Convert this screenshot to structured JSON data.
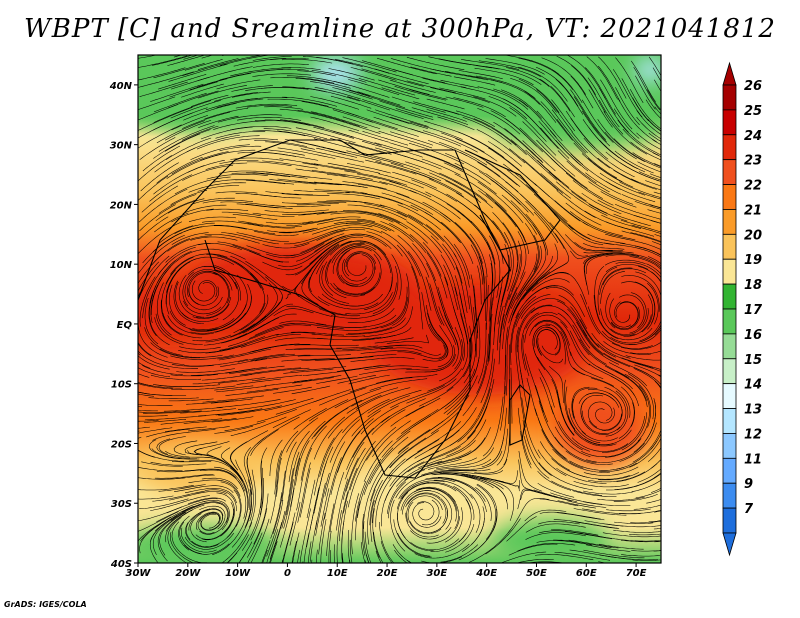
{
  "title": "WBPT [C] and Sreamline at 300hPa, VT: 2021041812",
  "footer": "GrADS: IGES/COLA",
  "map": {
    "lon_range": [
      -30,
      75
    ],
    "lat_range": [
      -40,
      45
    ],
    "lon_ticks": [
      {
        "value": -30,
        "label": "30W"
      },
      {
        "value": -20,
        "label": "20W"
      },
      {
        "value": -10,
        "label": "10W"
      },
      {
        "value": 0,
        "label": "0"
      },
      {
        "value": 10,
        "label": "10E"
      },
      {
        "value": 20,
        "label": "20E"
      },
      {
        "value": 30,
        "label": "30E"
      },
      {
        "value": 40,
        "label": "40E"
      },
      {
        "value": 50,
        "label": "50E"
      },
      {
        "value": 60,
        "label": "60E"
      },
      {
        "value": 70,
        "label": "70E"
      }
    ],
    "lat_ticks": [
      {
        "value": 40,
        "label": "40N"
      },
      {
        "value": 30,
        "label": "30N"
      },
      {
        "value": 20,
        "label": "20N"
      },
      {
        "value": 10,
        "label": "10N"
      },
      {
        "value": 0,
        "label": "EQ"
      },
      {
        "value": -10,
        "label": "10S"
      },
      {
        "value": -20,
        "label": "20S"
      },
      {
        "value": -30,
        "label": "30S"
      },
      {
        "value": -40,
        "label": "40S"
      }
    ]
  },
  "colorbar": {
    "levels": [
      {
        "label": "26",
        "color": "#a50000"
      },
      {
        "label": "25",
        "color": "#c80000"
      },
      {
        "label": "24",
        "color": "#e1280a"
      },
      {
        "label": "23",
        "color": "#f0501e"
      },
      {
        "label": "22",
        "color": "#fa7814"
      },
      {
        "label": "21",
        "color": "#fa9b28"
      },
      {
        "label": "20",
        "color": "#fac35a"
      },
      {
        "label": "19",
        "color": "#fae696"
      },
      {
        "label": "18",
        "color": "#32b432"
      },
      {
        "label": "17",
        "color": "#5ac85a"
      },
      {
        "label": "16",
        "color": "#96dc96"
      },
      {
        "label": "15",
        "color": "#c8f0c8"
      },
      {
        "label": "14",
        "color": "#e6faff"
      },
      {
        "label": "13",
        "color": "#b4e6ff"
      },
      {
        "label": "12",
        "color": "#8cc8ff"
      },
      {
        "label": "11",
        "color": "#64aaff"
      },
      {
        "label": "9",
        "color": "#3c8cf0"
      },
      {
        "label": "7",
        "color": "#1e6edc"
      }
    ],
    "top_arrow_color": "#a50000",
    "bottom_arrow_color": "#1e6edc"
  }
}
